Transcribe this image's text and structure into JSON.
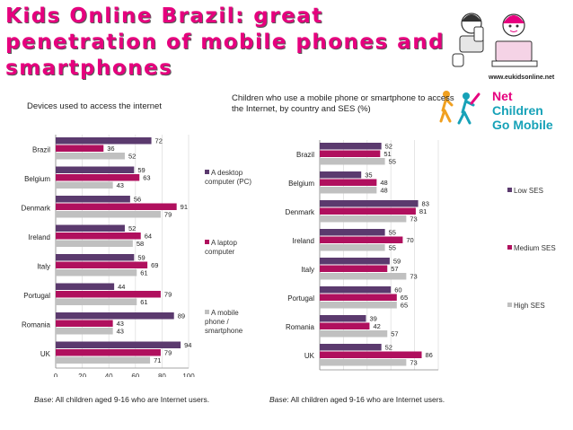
{
  "title": "Kids Online Brazil: great penetration of mobile phones and smartphones",
  "url": "www.eukidsonline.net",
  "logo": {
    "line1_a": "Net",
    "line1_b": " Children",
    "line2": "Go Mobile"
  },
  "colors": {
    "desktop": "#5b3a6e",
    "laptop": "#b0105e",
    "mobile": "#c0c0c0",
    "low": "#5b3a6e",
    "medium": "#b0105e",
    "high": "#c0c0c0",
    "title": "#e6007e"
  },
  "left_subtitle": "Devices used to access the internet",
  "right_subtitle": "Children who use a mobile phone or smartphone to access the Internet, by country and SES (%)",
  "legend_left": [
    "A desktop computer (PC)",
    "A laptop computer",
    "A mobile phone / smartphone"
  ],
  "legend_right": [
    "Low SES",
    "Medium SES",
    "High SES"
  ],
  "base_left": {
    "label": "Base",
    "text": ": All children aged 9-16 who are Internet users."
  },
  "base_right": {
    "label": "Base",
    "text": ": All children aged 9-16 who are Internet users."
  },
  "chart_data": [
    {
      "type": "bar",
      "orientation": "horizontal",
      "categories": [
        "Brazil",
        "Belgium",
        "Denmark",
        "Ireland",
        "Italy",
        "Portugal",
        "Romania",
        "UK"
      ],
      "series": [
        {
          "name": "A desktop computer (PC)",
          "values": [
            72,
            59,
            56,
            52,
            59,
            44,
            89,
            94
          ]
        },
        {
          "name": "A laptop computer",
          "values": [
            36,
            63,
            91,
            64,
            69,
            79,
            43,
            79
          ]
        },
        {
          "name": "A mobile phone / smartphone",
          "values": [
            52,
            43,
            79,
            58,
            61,
            61,
            43,
            71
          ]
        }
      ],
      "xlim": [
        0,
        100
      ],
      "xticks": [
        0,
        20,
        40,
        60,
        80,
        100
      ]
    },
    {
      "type": "bar",
      "orientation": "horizontal",
      "categories": [
        "Brazil",
        "Belgium",
        "Denmark",
        "Ireland",
        "Italy",
        "Portugal",
        "Romania",
        "UK"
      ],
      "series": [
        {
          "name": "Low SES",
          "values": [
            52,
            35,
            83,
            55,
            59,
            60,
            39,
            52
          ]
        },
        {
          "name": "Medium SES",
          "values": [
            51,
            48,
            81,
            70,
            57,
            65,
            42,
            86
          ]
        },
        {
          "name": "High SES",
          "values": [
            55,
            48,
            73,
            55,
            73,
            65,
            57,
            73
          ]
        }
      ],
      "xlim": [
        0,
        100
      ],
      "xticks": [
        0,
        20,
        40,
        60,
        80,
        100
      ]
    }
  ]
}
